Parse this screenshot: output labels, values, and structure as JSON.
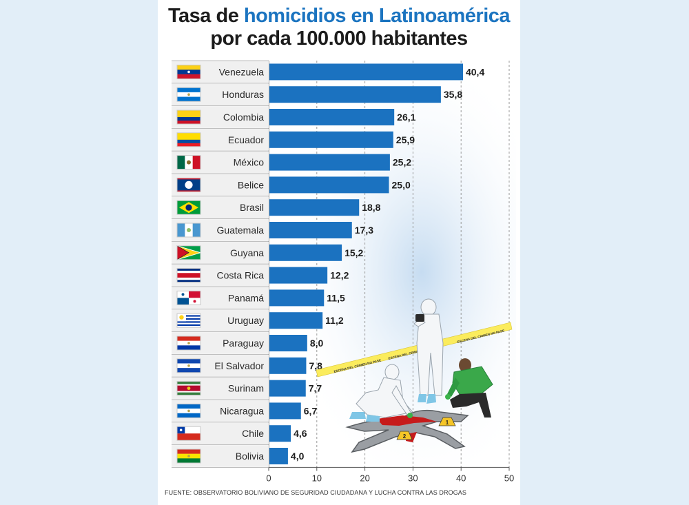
{
  "title": {
    "line1_prefix": "Tasa de ",
    "line1_highlight": "homicidios en Latinoamérica",
    "line2": "por cada 100.000 habitantes"
  },
  "source": "FUENTE: OBSERVATORIO BOLIVIANO DE SEGURIDAD CIUDADANA Y LUCHA CONTRA LAS DROGAS",
  "illustration": {
    "name": "crime-scene-illustration",
    "tape_text": "ESCENA DEL CRIMEN NO PASE",
    "markers": [
      "1",
      "2"
    ]
  },
  "colors": {
    "bar": "#1b72c0",
    "highlight": "#1b74c0",
    "tape": "#fbec5d"
  },
  "chart_data": {
    "type": "bar",
    "orientation": "horizontal",
    "title": "Tasa de homicidios en Latinoamérica por cada 100.000 habitantes",
    "categories": [
      "Venezuela",
      "Honduras",
      "Colombia",
      "Ecuador",
      "México",
      "Belice",
      "Brasil",
      "Guatemala",
      "Guyana",
      "Costa Rica",
      "Panamá",
      "Uruguay",
      "Paraguay",
      "El Salvador",
      "Surinam",
      "Nicaragua",
      "Chile",
      "Bolivia"
    ],
    "values": [
      40.4,
      35.8,
      26.1,
      25.9,
      25.2,
      25.0,
      18.8,
      17.3,
      15.2,
      12.2,
      11.5,
      11.2,
      8.0,
      7.8,
      7.7,
      6.7,
      4.6,
      4.0
    ],
    "value_labels": [
      "40,4",
      "35,8",
      "26,1",
      "25,9",
      "25,2",
      "25,0",
      "18,8",
      "17,3",
      "15,2",
      "12,2",
      "11,5",
      "11,2",
      "8,0",
      "7,8",
      "7,7",
      "6,7",
      "4,6",
      "4,0"
    ],
    "flags": [
      "venezuela-flag",
      "honduras-flag",
      "colombia-flag",
      "ecuador-flag",
      "mexico-flag",
      "belize-flag",
      "brazil-flag",
      "guatemala-flag",
      "guyana-flag",
      "costa-rica-flag",
      "panama-flag",
      "uruguay-flag",
      "paraguay-flag",
      "el-salvador-flag",
      "suriname-flag",
      "nicaragua-flag",
      "chile-flag",
      "bolivia-flag"
    ],
    "xlim": [
      0,
      50
    ],
    "xticks": [
      0,
      10,
      20,
      30,
      40,
      50
    ],
    "xlabel": "",
    "ylabel": "",
    "grid": "vertical dashed"
  }
}
